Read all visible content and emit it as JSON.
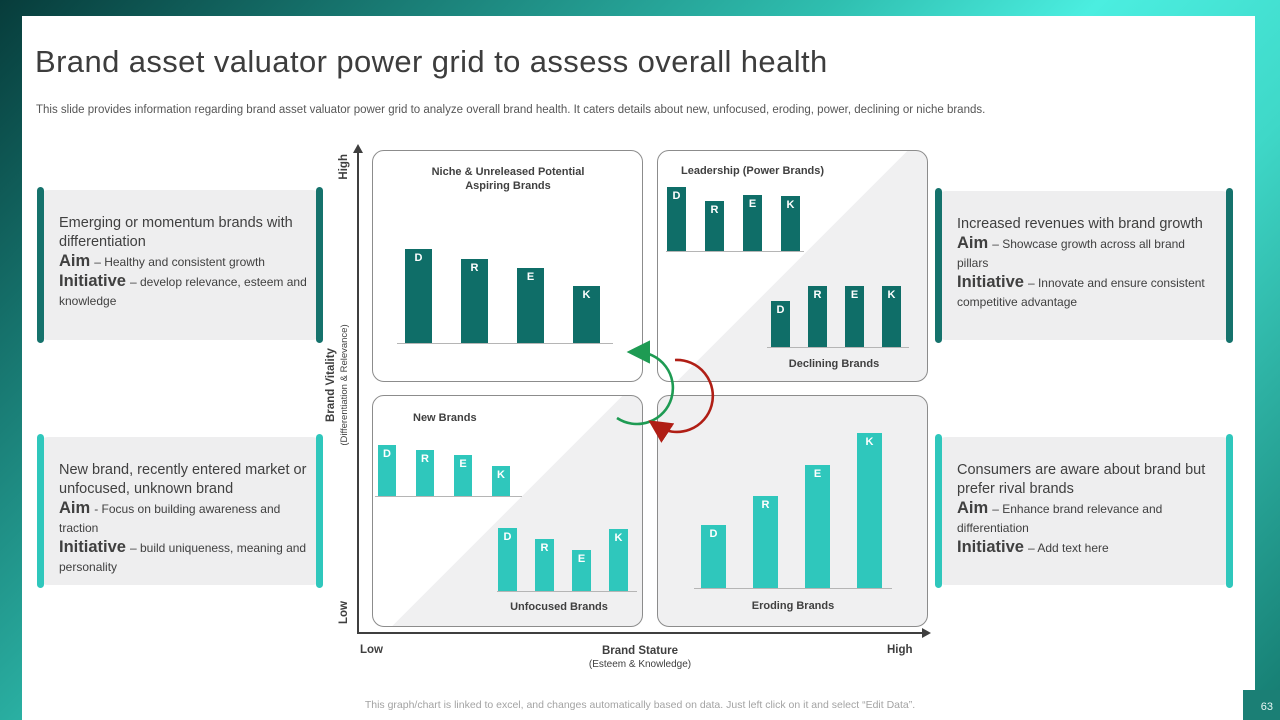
{
  "slide": {
    "title": "Brand asset valuator power grid to assess overall health",
    "subtitle": "This slide provides information regarding brand asset valuator power grid to analyze  overall brand health. It caters details about new, unfocused, eroding, power, declining or niche brands.",
    "footer": "This graph/chart is linked to excel,  and changes automatically based on data. Just left click on it and select “Edit Data”.",
    "page_number": "63"
  },
  "axes": {
    "y_title": "Brand Vitality",
    "y_subtitle": "(Differentiation & Relevance)",
    "y_high": "High",
    "y_low": "Low",
    "x_title": "Brand Stature",
    "x_subtitle": "(Esteem & Knowledge)",
    "x_low": "Low",
    "x_high": "High"
  },
  "callouts": [
    {
      "position": "top-left",
      "accent": "#15726c",
      "title": "Emerging or momentum  brands with differentiation",
      "aim_label": "Aim",
      "aim_text": "– Healthy and consistent growth",
      "initiative_label": "Initiative",
      "initiative_text": "– develop relevance, esteem and knowledge"
    },
    {
      "position": "bottom-left",
      "accent": "#2fc7bc",
      "title": "New brand, recently entered market or unfocused, unknown brand",
      "aim_label": "Aim",
      "aim_text": "- Focus on building awareness and traction",
      "initiative_label": "Initiative",
      "initiative_text": "– build uniqueness, meaning and personality"
    },
    {
      "position": "top-right",
      "accent": "#15726c",
      "title": "Increased revenues with brand growth",
      "aim_label": "Aim",
      "aim_text": "– Showcase growth across all brand pillars",
      "initiative_label": "Initiative",
      "initiative_text": "– Innovate and ensure consistent competitive advantage"
    },
    {
      "position": "bottom-right",
      "accent": "#2fc7bc",
      "title": "Consumers are aware about brand but prefer rival brands",
      "aim_label": "Aim",
      "aim_text": "– Enhance brand relevance and differentiation",
      "initiative_label": "Initiative",
      "initiative_text": "– Add text here"
    }
  ],
  "chart_data": [
    {
      "type": "bar",
      "quadrant": "niche-unreleased",
      "title": "Niche & Unreleased Potential Aspiring Brands",
      "categories": [
        "D",
        "R",
        "E",
        "K"
      ],
      "values": [
        94,
        84,
        75,
        57
      ],
      "unit": "px",
      "color": "#0f6e68"
    },
    {
      "type": "bar",
      "quadrant": "leadership",
      "title": "Leadership (Power Brands)",
      "categories": [
        "D",
        "R",
        "E",
        "K"
      ],
      "values": [
        64,
        50,
        56,
        55
      ],
      "unit": "px",
      "color": "#0f6e68"
    },
    {
      "type": "bar",
      "quadrant": "declining",
      "title": "Declining  Brands",
      "categories": [
        "D",
        "R",
        "E",
        "K"
      ],
      "values": [
        46,
        61,
        61,
        61
      ],
      "unit": "px",
      "color": "#0f6e68"
    },
    {
      "type": "bar",
      "quadrant": "new-brands",
      "title": "New Brands",
      "categories": [
        "D",
        "R",
        "E",
        "K"
      ],
      "values": [
        51,
        46,
        41,
        30
      ],
      "unit": "px",
      "color": "#2fc7bc"
    },
    {
      "type": "bar",
      "quadrant": "unfocused",
      "title": "Unfocused Brands",
      "categories": [
        "D",
        "R",
        "E",
        "K"
      ],
      "values": [
        63,
        52,
        41,
        62
      ],
      "unit": "px",
      "color": "#2fc7bc"
    },
    {
      "type": "bar",
      "quadrant": "eroding",
      "title": "Eroding  Brands",
      "categories": [
        "D",
        "R",
        "E",
        "K"
      ],
      "values": [
        63,
        92,
        123,
        155
      ],
      "unit": "px",
      "color": "#2fc7bc"
    }
  ],
  "colors": {
    "bar_dark_teal": "#0f6e68",
    "bar_turquoise": "#2fc7bc",
    "quadrant_shade": "#f0f0f1",
    "arrow_green": "#1e9b53",
    "arrow_red": "#b01e15",
    "page_box": "#1b7f75"
  }
}
